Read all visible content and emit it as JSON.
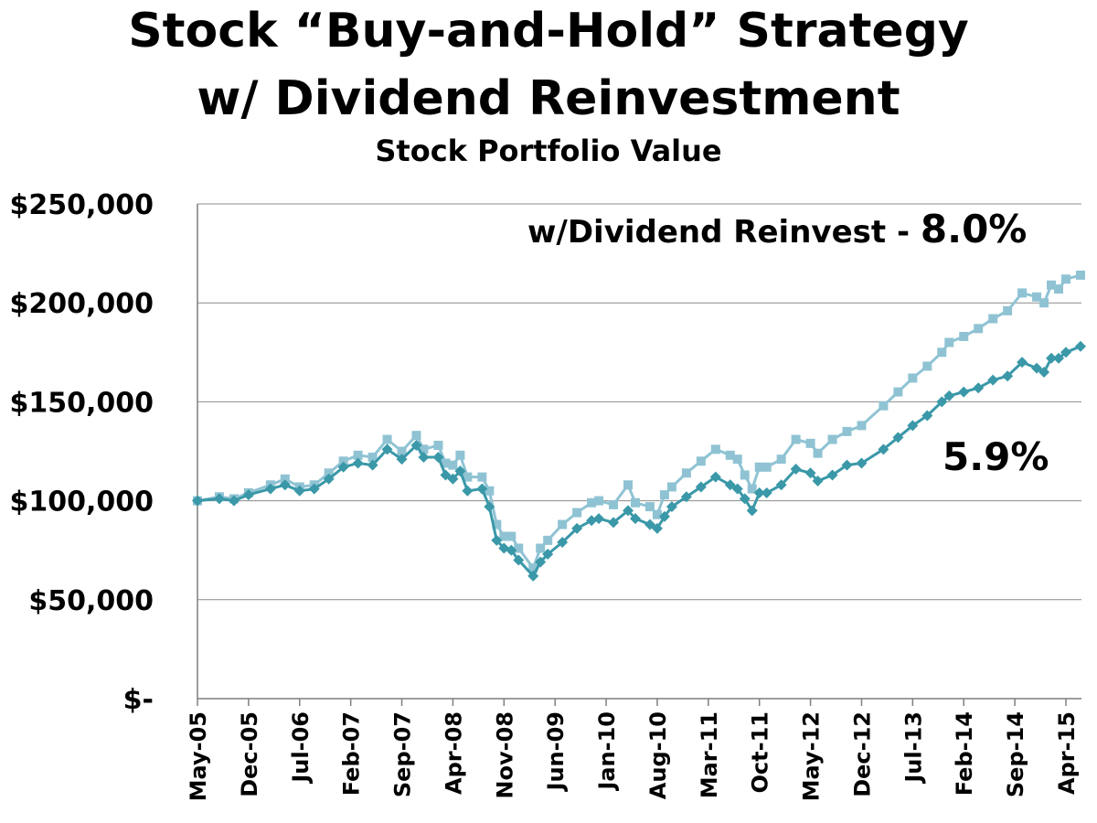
{
  "header": {
    "title": "Stock “Buy-and-Hold” Strategy",
    "title_line2": "w/ Dividend Reinvestment",
    "subtitle": "Stock Portfolio Value"
  },
  "chart_data": {
    "type": "line",
    "title": "Stock “Buy-and-Hold” Strategy w/ Dividend Reinvestment",
    "subtitle": "Stock Portfolio Value",
    "y_ticks": [
      "$-",
      "$50,000",
      "$100,000",
      "$150,000",
      "$200,000",
      "$250,000"
    ],
    "ylim": [
      0,
      250000
    ],
    "x_ticks": [
      "May-05",
      "Dec-05",
      "Jul-06",
      "Feb-07",
      "Sep-07",
      "Apr-08",
      "Nov-08",
      "Jun-09",
      "Jan-10",
      "Aug-10",
      "Mar-11",
      "Oct-11",
      "May-12",
      "Dec-12",
      "Jul-13",
      "Feb-14",
      "Sep-14",
      "Apr-15"
    ],
    "grid": true,
    "legend": "none",
    "annotations": {
      "dividend_label": "w/Dividend Reinvest - ",
      "dividend_rate": "8.0%",
      "base_rate": "5.9%"
    },
    "colors": {
      "dividend": "#8fc3d3",
      "base": "#3a98a8",
      "grid": "#8c8c8c",
      "axis": "#7f7f7f"
    },
    "series": [
      {
        "marker": "square",
        "anchors": [
          [
            "May-05",
            100000
          ],
          [
            "Aug-05",
            102000
          ],
          [
            "Oct-05",
            101000
          ],
          [
            "Dec-05",
            104000
          ],
          [
            "Mar-06",
            108000
          ],
          [
            "May-06",
            111000
          ],
          [
            "Jul-06",
            107000
          ],
          [
            "Sep-06",
            108000
          ],
          [
            "Nov-06",
            114000
          ],
          [
            "Jan-07",
            120000
          ],
          [
            "Mar-07",
            123000
          ],
          [
            "May-07",
            122000
          ],
          [
            "Jul-07",
            131000
          ],
          [
            "Sep-07",
            125000
          ],
          [
            "Nov-07",
            133000
          ],
          [
            "Dec-07",
            126000
          ],
          [
            "Feb-08",
            128000
          ],
          [
            "Mar-08",
            119000
          ],
          [
            "Apr-08",
            118000
          ],
          [
            "May-08",
            123000
          ],
          [
            "Jun-08",
            112000
          ],
          [
            "Aug-08",
            112000
          ],
          [
            "Sep-08",
            105000
          ],
          [
            "Oct-08",
            88000
          ],
          [
            "Nov-08",
            82000
          ],
          [
            "Dec-08",
            82000
          ],
          [
            "Jan-09",
            76000
          ],
          [
            "Mar-09",
            66000
          ],
          [
            "Apr-09",
            76000
          ],
          [
            "May-09",
            80000
          ],
          [
            "Jul-09",
            88000
          ],
          [
            "Sep-09",
            94000
          ],
          [
            "Nov-09",
            99000
          ],
          [
            "Dec-09",
            100000
          ],
          [
            "Feb-10",
            98000
          ],
          [
            "Apr-10",
            108000
          ],
          [
            "May-10",
            99000
          ],
          [
            "Jul-10",
            97000
          ],
          [
            "Aug-10",
            93000
          ],
          [
            "Sep-10",
            103000
          ],
          [
            "Oct-10",
            107000
          ],
          [
            "Dec-10",
            114000
          ],
          [
            "Feb-11",
            120000
          ],
          [
            "Apr-11",
            126000
          ],
          [
            "Jun-11",
            123000
          ],
          [
            "Jul-11",
            121000
          ],
          [
            "Aug-11",
            113000
          ],
          [
            "Sep-11",
            106000
          ],
          [
            "Oct-11",
            117000
          ],
          [
            "Nov-11",
            117000
          ],
          [
            "Jan-12",
            121000
          ],
          [
            "Mar-12",
            131000
          ],
          [
            "May-12",
            129000
          ],
          [
            "Jun-12",
            124000
          ],
          [
            "Aug-12",
            131000
          ],
          [
            "Oct-12",
            135000
          ],
          [
            "Dec-12",
            138000
          ],
          [
            "Mar-13",
            148000
          ],
          [
            "May-13",
            155000
          ],
          [
            "Jul-13",
            162000
          ],
          [
            "Sep-13",
            168000
          ],
          [
            "Nov-13",
            175000
          ],
          [
            "Dec-13",
            180000
          ],
          [
            "Feb-14",
            183000
          ],
          [
            "Apr-14",
            187000
          ],
          [
            "Jun-14",
            192000
          ],
          [
            "Aug-14",
            196000
          ],
          [
            "Oct-14",
            205000
          ],
          [
            "Dec-14",
            203000
          ],
          [
            "Jan-15",
            200000
          ],
          [
            "Feb-15",
            209000
          ],
          [
            "Mar-15",
            207000
          ],
          [
            "Apr-15",
            212000
          ],
          [
            "Jun-15",
            214000
          ]
        ]
      },
      {
        "marker": "diamond",
        "anchors": [
          [
            "May-05",
            100000
          ],
          [
            "Aug-05",
            101000
          ],
          [
            "Oct-05",
            100000
          ],
          [
            "Dec-05",
            103000
          ],
          [
            "Mar-06",
            106000
          ],
          [
            "May-06",
            108000
          ],
          [
            "Jul-06",
            105000
          ],
          [
            "Sep-06",
            106000
          ],
          [
            "Nov-06",
            111000
          ],
          [
            "Jan-07",
            117000
          ],
          [
            "Mar-07",
            119000
          ],
          [
            "May-07",
            118000
          ],
          [
            "Jul-07",
            126000
          ],
          [
            "Sep-07",
            121000
          ],
          [
            "Nov-07",
            128000
          ],
          [
            "Dec-07",
            122000
          ],
          [
            "Feb-08",
            122000
          ],
          [
            "Mar-08",
            113000
          ],
          [
            "Apr-08",
            111000
          ],
          [
            "May-08",
            115000
          ],
          [
            "Jun-08",
            105000
          ],
          [
            "Aug-08",
            106000
          ],
          [
            "Sep-08",
            97000
          ],
          [
            "Oct-08",
            80000
          ],
          [
            "Nov-08",
            76000
          ],
          [
            "Dec-08",
            75000
          ],
          [
            "Jan-09",
            70000
          ],
          [
            "Mar-09",
            62000
          ],
          [
            "Apr-09",
            69000
          ],
          [
            "May-09",
            73000
          ],
          [
            "Jul-09",
            79000
          ],
          [
            "Sep-09",
            86000
          ],
          [
            "Nov-09",
            90000
          ],
          [
            "Dec-09",
            91000
          ],
          [
            "Feb-10",
            89000
          ],
          [
            "Apr-10",
            95000
          ],
          [
            "May-10",
            91000
          ],
          [
            "Jul-10",
            88000
          ],
          [
            "Aug-10",
            86000
          ],
          [
            "Sep-10",
            92000
          ],
          [
            "Oct-10",
            97000
          ],
          [
            "Dec-10",
            102000
          ],
          [
            "Feb-11",
            107000
          ],
          [
            "Apr-11",
            112000
          ],
          [
            "Jun-11",
            108000
          ],
          [
            "Jul-11",
            106000
          ],
          [
            "Aug-11",
            101000
          ],
          [
            "Sep-11",
            95000
          ],
          [
            "Oct-11",
            104000
          ],
          [
            "Nov-11",
            104000
          ],
          [
            "Jan-12",
            108000
          ],
          [
            "Mar-12",
            116000
          ],
          [
            "May-12",
            114000
          ],
          [
            "Jun-12",
            110000
          ],
          [
            "Aug-12",
            113000
          ],
          [
            "Oct-12",
            118000
          ],
          [
            "Dec-12",
            119000
          ],
          [
            "Mar-13",
            126000
          ],
          [
            "May-13",
            132000
          ],
          [
            "Jul-13",
            138000
          ],
          [
            "Sep-13",
            143000
          ],
          [
            "Nov-13",
            150000
          ],
          [
            "Dec-13",
            153000
          ],
          [
            "Feb-14",
            155000
          ],
          [
            "Apr-14",
            157000
          ],
          [
            "Jun-14",
            161000
          ],
          [
            "Aug-14",
            163000
          ],
          [
            "Oct-14",
            170000
          ],
          [
            "Dec-14",
            167000
          ],
          [
            "Jan-15",
            165000
          ],
          [
            "Feb-15",
            172000
          ],
          [
            "Mar-15",
            172000
          ],
          [
            "Apr-15",
            175000
          ],
          [
            "Jun-15",
            178000
          ]
        ]
      }
    ]
  }
}
